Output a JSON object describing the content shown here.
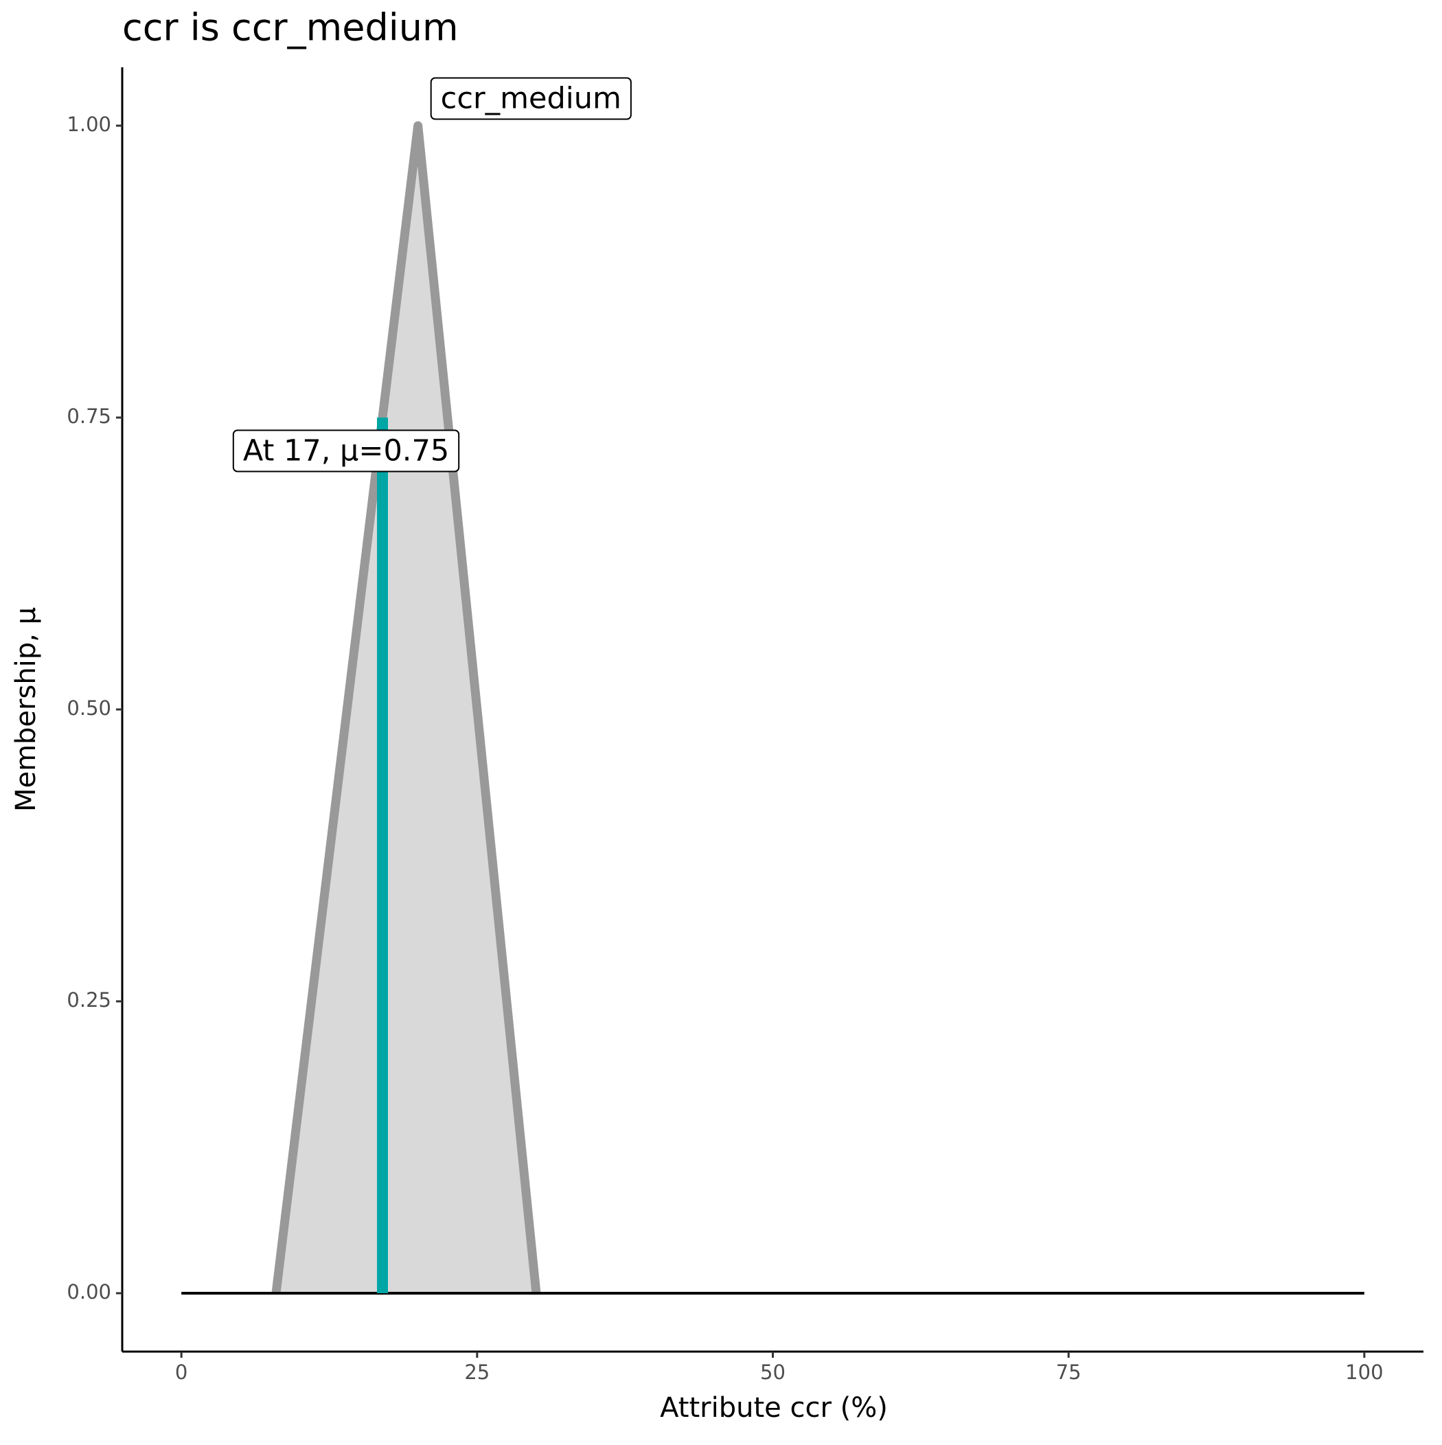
{
  "chart_data": {
    "type": "area",
    "title": "ccr is ccr_medium",
    "xlabel": "Attribute ccr (%)",
    "ylabel": "Membership, μ",
    "xlim": [
      -5,
      105
    ],
    "ylim": [
      -0.05,
      1.05
    ],
    "xticks": [
      0,
      25,
      50,
      75,
      100
    ],
    "yticks": [
      {
        "value": 0,
        "label": "0.00"
      },
      {
        "value": 0.25,
        "label": "0.25"
      },
      {
        "value": 0.5,
        "label": "0.50"
      },
      {
        "value": 0.75,
        "label": "0.75"
      },
      {
        "value": 1,
        "label": "1.00"
      }
    ],
    "series": [
      {
        "name": "ccr_medium",
        "color": "#999999",
        "fill": "#d9d9d9",
        "x": [
          8,
          20,
          30
        ],
        "values": [
          0,
          1,
          0
        ]
      }
    ],
    "baseline": {
      "x": [
        0,
        100
      ],
      "values": [
        0,
        0
      ],
      "color": "#000000"
    },
    "marker": {
      "x": 17,
      "value": 0.75,
      "color": "#00a6a6",
      "label": "At 17, μ=0.75"
    }
  }
}
